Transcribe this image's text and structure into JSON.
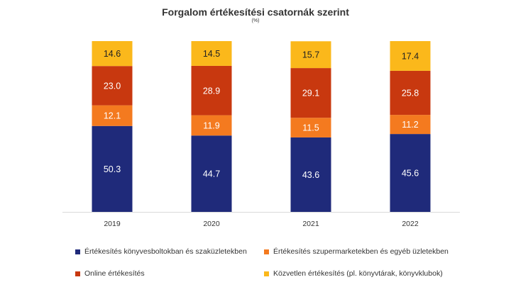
{
  "chart_data": {
    "type": "bar",
    "stacked": true,
    "title": "Forgalom értékesítési csatornák szerint",
    "subtitle": "(%)",
    "categories": [
      "2019",
      "2020",
      "2021",
      "2022"
    ],
    "series": [
      {
        "name": "Értékesítés könyvesboltokban és szaküzletekben",
        "color": "#1f2a7a",
        "values": [
          50.3,
          44.7,
          43.6,
          45.6
        ]
      },
      {
        "name": "Értékesítés szupermarketekben és egyéb üzletekben",
        "color": "#f47a1f",
        "values": [
          12.1,
          11.9,
          11.5,
          11.2
        ]
      },
      {
        "name": "Online értékesítés",
        "color": "#c8380f",
        "values": [
          23.0,
          28.9,
          29.1,
          25.8
        ]
      },
      {
        "name": "Közvetlen értékesítés (pl. könyvtárak, könyvklubok)",
        "color": "#fbb81b",
        "values": [
          14.6,
          14.5,
          15.7,
          17.4
        ]
      }
    ],
    "labels": [
      [
        "50.3",
        "44.7",
        "43.6",
        "45.6"
      ],
      [
        "12.1",
        "11.9",
        "11.5",
        "11.2"
      ],
      [
        "23.0",
        "28.9",
        "29.1",
        "25.8"
      ],
      [
        "14.6",
        "14.5",
        "15.7",
        "17.4"
      ]
    ],
    "ylim": [
      0,
      100
    ],
    "xlabel": "",
    "ylabel": "",
    "grid": false,
    "legend_position": "bottom"
  }
}
